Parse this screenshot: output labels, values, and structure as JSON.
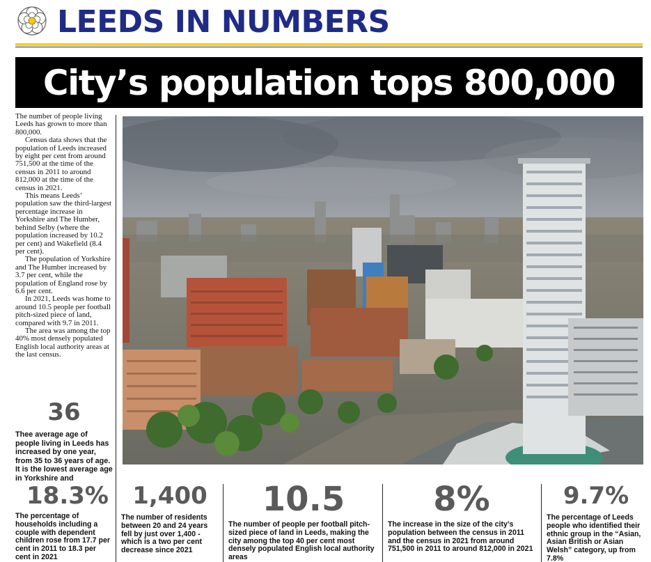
{
  "masthead": {
    "title": "LEEDS IN NUMBERS",
    "emblem": "yorkshire-rose-icon"
  },
  "headline": "City’s population tops 800,000",
  "article": {
    "paragraphs": [
      "The number of people living Leeds has grown to more than 800,000.",
      "Census data shows that the population of Leeds increased by eight per cent from around 751,500 at the time of the census in 2011 to around 812,000 at the time of the census in 2021.",
      "This means Leeds’ population saw the third-largest percentage increase in Yorkshire and The Humber, behind Selby (where the population increased by 10.2 per cent) and Wakefield (8.4 per cent).",
      "The population of Yorkshire and The Humber increased by 3.7 per cent, while the population of England rose by 6.6 per cent.",
      "In 2021, Leeds was home to around 10.5 people per football pitch-sized piece of land, compared with 9.7 in 2011.",
      "The area was among the top 40% most densely populated English local authority areas at the last census."
    ]
  },
  "side_stat": {
    "value": "36",
    "description": "Thee average age of people living in Leeds has increased by one year, from 35 to 36 years of age. It is the lowest average age in Yorkshire and"
  },
  "stats": [
    {
      "value": "18.3%",
      "description": "The percentage of households including a couple with dependent children rose from 17.7 per cent in 2011 to 18.3 per cent in 2021"
    },
    {
      "value": "1,400",
      "description": "The number of residents between 20 and 24 years fell by just over 1,400 - which is a two per cent decrease since 2021"
    },
    {
      "value": "10.5",
      "description": "The number of people per football pitch-sized piece of land in Leeds, making the city among the top 40 per cent most densely populated English local authority areas"
    },
    {
      "value": "8%",
      "description": "The increase in the size of the city’s population between the census in 2011 and the census in 2021 from around 751,500 in 2011 to around 812,000 in 2021"
    },
    {
      "value": "9.7%",
      "description": "The percentage of Leeds people who identified their ethnic group in the “Asian, Asian British or Asian Welsh” category, up from 7.8%"
    }
  ],
  "colors": {
    "masthead": "#1f2b86",
    "accent_rule": "#f2d11c",
    "stat_number": "#5a5a5a"
  },
  "photo": {
    "subject": "Aerial view of Leeds city centre skyline"
  }
}
